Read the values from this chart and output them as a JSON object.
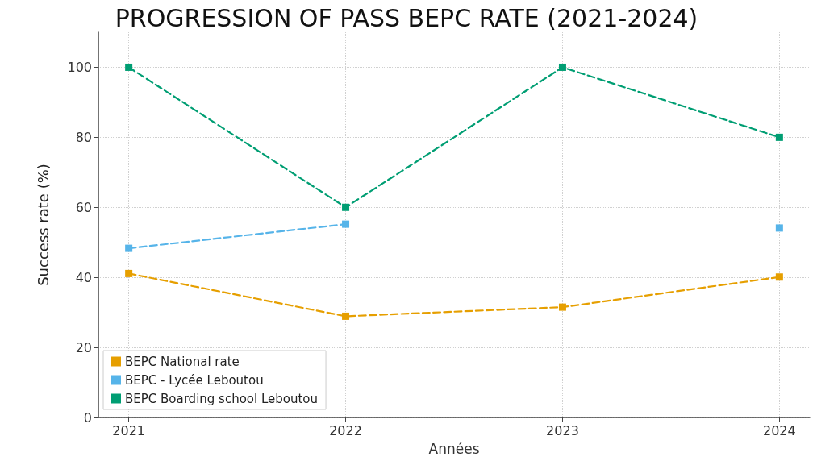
{
  "chart_data": {
    "type": "line",
    "title": "PROGRESSION OF PASS BEPC RATE (2021-2024)",
    "xlabel": "Années",
    "ylabel": "Success rate (%)",
    "x": [
      2021,
      2022,
      2023,
      2024
    ],
    "series": [
      {
        "name": "BEPC National rate",
        "color": "#e69f00",
        "values": [
          41.1,
          28.9,
          31.5,
          40.1
        ]
      },
      {
        "name": "BEPC - Lycée Leboutou",
        "color": "#56b4e9",
        "values": [
          48.3,
          55.2,
          null,
          54.1
        ]
      },
      {
        "name": "BEPC Boarding school Leboutou",
        "color": "#009e73",
        "values": [
          100,
          60,
          100,
          80
        ]
      }
    ],
    "xlim": [
      2020.86,
      2024.14
    ],
    "xticks": [
      2021,
      2022,
      2023,
      2024
    ],
    "ylim": [
      0,
      110
    ],
    "yticks": [
      0,
      20,
      40,
      60,
      80,
      100
    ],
    "grid": true,
    "legend": "bottom left",
    "marker": "square",
    "line_style": "dashed"
  }
}
